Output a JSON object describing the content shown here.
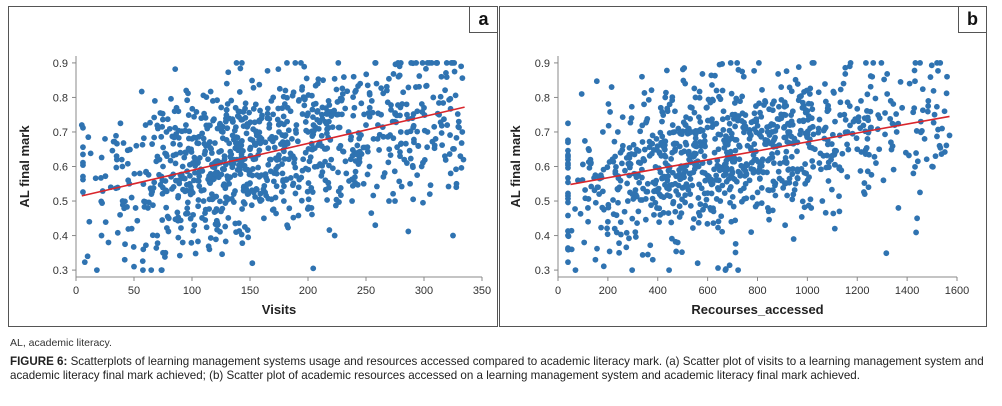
{
  "caption": {
    "label": "FIGURE 6:",
    "text": "Scatterplots of learning management systems usage and resources accessed compared to academic literacy mark. (a) Scatter plot of visits to a learning management system and academic literacy final mark achieved; (b) Scatter plot of academic resources accessed on a learning management system and academic literacy final mark achieved."
  },
  "abbreviation_note": "AL, academic literacy.",
  "colors": {
    "points": "#2f73b1",
    "trend": "#d9262c",
    "axis": "#888888"
  },
  "chart_data": [
    {
      "panel_label": "a",
      "type": "scatter",
      "title": "",
      "xlabel": "Visits",
      "ylabel": "AL final mark",
      "xlim": [
        0,
        350
      ],
      "ylim": [
        0.28,
        0.92
      ],
      "x_ticks": [
        "0",
        "50",
        "100",
        "150",
        "200",
        "250",
        "300",
        "350"
      ],
      "y_ticks": [
        "0.3",
        "0.4",
        "0.5",
        "0.6",
        "0.7",
        "0.8",
        "0.9"
      ],
      "trendline": {
        "x1": 5,
        "y1": 0.515,
        "x2": 335,
        "y2": 0.772
      },
      "n_points": 1000,
      "points": [
        [
          5,
          0.72
        ],
        [
          10,
          0.34
        ],
        [
          18,
          0.3
        ],
        [
          22,
          0.4
        ],
        [
          25,
          0.68
        ],
        [
          28,
          0.38
        ],
        [
          30,
          0.54
        ],
        [
          35,
          0.63
        ],
        [
          38,
          0.46
        ],
        [
          40,
          0.6
        ],
        [
          42,
          0.33
        ],
        [
          45,
          0.56
        ],
        [
          48,
          0.42
        ],
        [
          50,
          0.31
        ],
        [
          52,
          0.66
        ],
        [
          55,
          0.58
        ],
        [
          58,
          0.36
        ],
        [
          60,
          0.72
        ],
        [
          62,
          0.48
        ],
        [
          65,
          0.52
        ],
        [
          68,
          0.79
        ],
        [
          70,
          0.4
        ],
        [
          72,
          0.62
        ],
        [
          75,
          0.35
        ],
        [
          78,
          0.7
        ],
        [
          80,
          0.45
        ],
        [
          82,
          0.57
        ],
        [
          85,
          0.76
        ],
        [
          88,
          0.51
        ],
        [
          90,
          0.64
        ],
        [
          92,
          0.38
        ],
        [
          95,
          0.82
        ],
        [
          98,
          0.55
        ],
        [
          100,
          0.68
        ],
        [
          102,
          0.43
        ],
        [
          105,
          0.61
        ],
        [
          108,
          0.74
        ],
        [
          110,
          0.5
        ],
        [
          112,
          0.66
        ],
        [
          115,
          0.36
        ],
        [
          118,
          0.79
        ],
        [
          120,
          0.58
        ],
        [
          122,
          0.71
        ],
        [
          125,
          0.47
        ],
        [
          128,
          0.63
        ],
        [
          130,
          0.84
        ],
        [
          132,
          0.55
        ],
        [
          135,
          0.69
        ],
        [
          138,
          0.41
        ],
        [
          140,
          0.76
        ],
        [
          142,
          0.6
        ],
        [
          145,
          0.53
        ],
        [
          148,
          0.72
        ],
        [
          150,
          0.65
        ],
        [
          152,
          0.32
        ],
        [
          155,
          0.78
        ],
        [
          158,
          0.57
        ],
        [
          160,
          0.68
        ],
        [
          162,
          0.45
        ],
        [
          165,
          0.74
        ],
        [
          168,
          0.62
        ],
        [
          170,
          0.8
        ],
        [
          172,
          0.51
        ],
        [
          175,
          0.7
        ],
        [
          178,
          0.58
        ],
        [
          180,
          0.66
        ],
        [
          182,
          0.43
        ],
        [
          185,
          0.76
        ],
        [
          188,
          0.61
        ],
        [
          190,
          0.72
        ],
        [
          192,
          0.54
        ],
        [
          195,
          0.83
        ],
        [
          198,
          0.64
        ],
        [
          200,
          0.7
        ],
        [
          203,
          0.48
        ],
        [
          205,
          0.78
        ],
        [
          208,
          0.6
        ],
        [
          210,
          0.67
        ],
        [
          213,
          0.85
        ],
        [
          215,
          0.56
        ],
        [
          218,
          0.73
        ],
        [
          220,
          0.62
        ],
        [
          223,
          0.4
        ],
        [
          225,
          0.75
        ],
        [
          228,
          0.66
        ],
        [
          230,
          0.81
        ],
        [
          233,
          0.58
        ],
        [
          235,
          0.7
        ],
        [
          238,
          0.5
        ],
        [
          240,
          0.77
        ],
        [
          243,
          0.64
        ],
        [
          245,
          0.84
        ],
        [
          248,
          0.55
        ],
        [
          250,
          0.72
        ],
        [
          253,
          0.6
        ],
        [
          255,
          0.79
        ],
        [
          258,
          0.43
        ],
        [
          260,
          0.68
        ],
        [
          263,
          0.75
        ],
        [
          265,
          0.57
        ],
        [
          268,
          0.82
        ],
        [
          270,
          0.65
        ],
        [
          273,
          0.73
        ],
        [
          275,
          0.5
        ],
        [
          278,
          0.86
        ],
        [
          280,
          0.7
        ],
        [
          283,
          0.62
        ],
        [
          285,
          0.78
        ],
        [
          288,
          0.55
        ],
        [
          290,
          0.74
        ],
        [
          293,
          0.83
        ],
        [
          295,
          0.66
        ],
        [
          298,
          0.6
        ],
        [
          300,
          0.77
        ],
        [
          303,
          0.7
        ],
        [
          305,
          0.52
        ],
        [
          308,
          0.8
        ],
        [
          310,
          0.68
        ],
        [
          313,
          0.75
        ],
        [
          315,
          0.86
        ],
        [
          318,
          0.63
        ],
        [
          320,
          0.72
        ],
        [
          323,
          0.58
        ],
        [
          325,
          0.4
        ],
        [
          326,
          0.9
        ],
        [
          328,
          0.55
        ],
        [
          330,
          0.73
        ],
        [
          332,
          0.89
        ],
        [
          333,
          0.7
        ],
        [
          334,
          0.62
        ]
      ]
    },
    {
      "panel_label": "b",
      "type": "scatter",
      "title": "",
      "xlabel": "Recourses_accessed",
      "ylabel": "AL final mark",
      "xlim": [
        0,
        1600
      ],
      "ylim": [
        0.28,
        0.92
      ],
      "x_ticks": [
        "0",
        "200",
        "400",
        "600",
        "800",
        "1000",
        "1200",
        "1400",
        "1600"
      ],
      "y_ticks": [
        "0.3",
        "0.4",
        "0.5",
        "0.6",
        "0.7",
        "0.8",
        "0.9"
      ],
      "trendline": {
        "x1": 50,
        "y1": 0.548,
        "x2": 1570,
        "y2": 0.745
      },
      "n_points": 1000,
      "points": [
        [
          40,
          0.4
        ],
        [
          55,
          0.36
        ],
        [
          70,
          0.3
        ],
        [
          80,
          0.56
        ],
        [
          95,
          0.81
        ],
        [
          105,
          0.38
        ],
        [
          120,
          0.48
        ],
        [
          130,
          0.62
        ],
        [
          150,
          0.33
        ],
        [
          165,
          0.52
        ],
        [
          180,
          0.7
        ],
        [
          200,
          0.44
        ],
        [
          215,
          0.83
        ],
        [
          230,
          0.58
        ],
        [
          245,
          0.35
        ],
        [
          260,
          0.66
        ],
        [
          280,
          0.5
        ],
        [
          295,
          0.74
        ],
        [
          310,
          0.41
        ],
        [
          330,
          0.61
        ],
        [
          345,
          0.78
        ],
        [
          360,
          0.55
        ],
        [
          380,
          0.33
        ],
        [
          395,
          0.68
        ],
        [
          410,
          0.46
        ],
        [
          430,
          0.8
        ],
        [
          445,
          0.59
        ],
        [
          460,
          0.72
        ],
        [
          480,
          0.38
        ],
        [
          495,
          0.64
        ],
        [
          510,
          0.84
        ],
        [
          530,
          0.52
        ],
        [
          545,
          0.7
        ],
        [
          560,
          0.32
        ],
        [
          580,
          0.61
        ],
        [
          595,
          0.77
        ],
        [
          610,
          0.48
        ],
        [
          630,
          0.68
        ],
        [
          645,
          0.56
        ],
        [
          660,
          0.82
        ],
        [
          680,
          0.63
        ],
        [
          695,
          0.44
        ],
        [
          710,
          0.75
        ],
        [
          730,
          0.58
        ],
        [
          745,
          0.86
        ],
        [
          760,
          0.66
        ],
        [
          780,
          0.51
        ],
        [
          795,
          0.73
        ],
        [
          810,
          0.6
        ],
        [
          830,
          0.79
        ],
        [
          845,
          0.47
        ],
        [
          860,
          0.7
        ],
        [
          880,
          0.64
        ],
        [
          895,
          0.83
        ],
        [
          910,
          0.55
        ],
        [
          930,
          0.72
        ],
        [
          945,
          0.39
        ],
        [
          960,
          0.67
        ],
        [
          980,
          0.77
        ],
        [
          995,
          0.58
        ],
        [
          1010,
          0.81
        ],
        [
          1030,
          0.65
        ],
        [
          1045,
          0.71
        ],
        [
          1060,
          0.5
        ],
        [
          1080,
          0.76
        ],
        [
          1095,
          0.62
        ],
        [
          1110,
          0.42
        ],
        [
          1130,
          0.69
        ],
        [
          1145,
          0.84
        ],
        [
          1160,
          0.57
        ],
        [
          1170,
          0.89
        ],
        [
          1185,
          0.73
        ],
        [
          1200,
          0.65
        ],
        [
          1215,
          0.79
        ],
        [
          1230,
          0.52
        ],
        [
          1245,
          0.7
        ],
        [
          1260,
          0.86
        ],
        [
          1275,
          0.61
        ],
        [
          1290,
          0.74
        ],
        [
          1305,
          0.56
        ],
        [
          1320,
          0.81
        ],
        [
          1335,
          0.67
        ],
        [
          1350,
          0.72
        ],
        [
          1365,
          0.48
        ],
        [
          1380,
          0.77
        ],
        [
          1395,
          0.64
        ],
        [
          1410,
          0.84
        ],
        [
          1425,
          0.58
        ],
        [
          1440,
          0.45
        ],
        [
          1455,
          0.73
        ],
        [
          1470,
          0.68
        ],
        [
          1485,
          0.79
        ],
        [
          1500,
          0.6
        ],
        [
          1510,
          0.75
        ],
        [
          1520,
          0.9
        ],
        [
          1530,
          0.66
        ],
        [
          1540,
          0.71
        ],
        [
          1550,
          0.76
        ],
        [
          1560,
          0.86
        ],
        [
          1570,
          0.69
        ]
      ]
    }
  ]
}
